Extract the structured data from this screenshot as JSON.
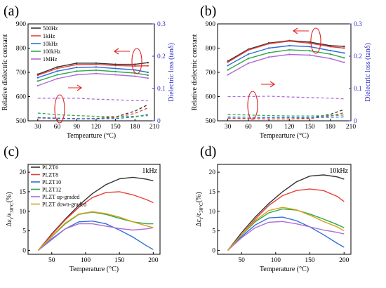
{
  "chart_data": [
    {
      "panel": "(a)",
      "type": "line",
      "xlabel": "Tempearture (°C)",
      "ylabel": "Relative dielectric constant",
      "ylabel_right": "Dielectric loss (tanδ)",
      "xlim": [
        15,
        210
      ],
      "ylim": [
        500,
        900
      ],
      "ylim_right": [
        0,
        0.3
      ],
      "xticks": [
        "30",
        "60",
        "90",
        "120",
        "150",
        "180",
        "210"
      ],
      "yticks": [
        "500",
        "600",
        "700",
        "800",
        "900"
      ],
      "yticks_right": [
        "0",
        "0.1",
        "0.2",
        "0.3"
      ],
      "legend": [
        "500Hz",
        "1kHz",
        "10kHz",
        "100kHz",
        "1MHz"
      ],
      "colors": [
        "#333333",
        "#e8403a",
        "#2f6fd6",
        "#2ea84a",
        "#b06bd8"
      ],
      "x": [
        30,
        60,
        90,
        120,
        150,
        180,
        200
      ],
      "series": [
        {
          "name": "500Hz",
          "values": [
            692,
            722,
            738,
            738,
            733,
            733,
            740
          ]
        },
        {
          "name": "1kHz",
          "values": [
            688,
            716,
            732,
            733,
            728,
            726,
            727
          ]
        },
        {
          "name": "10kHz",
          "values": [
            678,
            705,
            720,
            722,
            716,
            710,
            700
          ]
        },
        {
          "name": "100kHz",
          "values": [
            664,
            690,
            705,
            709,
            703,
            697,
            688
          ]
        },
        {
          "name": "1MHz",
          "values": [
            645,
            674,
            690,
            695,
            690,
            684,
            676
          ]
        }
      ],
      "loss_series": [
        {
          "name": "500Hz",
          "values": [
            0.01,
            0.008,
            0.006,
            0.007,
            0.012,
            0.03,
            0.05
          ]
        },
        {
          "name": "1kHz",
          "values": [
            0.009,
            0.007,
            0.006,
            0.006,
            0.01,
            0.023,
            0.04
          ]
        },
        {
          "name": "10kHz",
          "values": [
            0.01,
            0.008,
            0.007,
            0.006,
            0.007,
            0.012,
            0.02
          ]
        },
        {
          "name": "100kHz",
          "values": [
            0.024,
            0.019,
            0.016,
            0.014,
            0.013,
            0.014,
            0.016
          ]
        },
        {
          "name": "1MHz",
          "values": [
            0.07,
            0.07,
            0.07,
            0.067,
            0.065,
            0.063,
            0.062
          ]
        }
      ]
    },
    {
      "panel": "(b)",
      "type": "line",
      "xlabel": "Tempearture (°C)",
      "ylabel": "Relative dielectric constant",
      "ylabel_right": "Dielectric loss (tanδ)",
      "xlim": [
        15,
        210
      ],
      "ylim": [
        500,
        900
      ],
      "ylim_right": [
        0,
        0.3
      ],
      "xticks": [
        "30",
        "60",
        "90",
        "120",
        "150",
        "180",
        "210"
      ],
      "yticks": [
        "500",
        "600",
        "700",
        "800",
        "900"
      ],
      "yticks_right": [
        "0",
        "0.1",
        "0.2",
        "0.3"
      ],
      "colors": [
        "#333333",
        "#e8403a",
        "#2f6fd6",
        "#2ea84a",
        "#b06bd8"
      ],
      "x": [
        30,
        60,
        90,
        120,
        150,
        180,
        200
      ],
      "series": [
        {
          "name": "500Hz",
          "values": [
            746,
            795,
            821,
            831,
            825,
            810,
            807
          ]
        },
        {
          "name": "1kHz",
          "values": [
            742,
            792,
            818,
            829,
            820,
            806,
            800
          ]
        },
        {
          "name": "10kHz",
          "values": [
            728,
            775,
            800,
            810,
            806,
            790,
            780
          ]
        },
        {
          "name": "100kHz",
          "values": [
            710,
            757,
            781,
            793,
            789,
            775,
            760
          ]
        },
        {
          "name": "1MHz",
          "values": [
            690,
            737,
            763,
            774,
            771,
            757,
            741
          ]
        }
      ],
      "loss_series": [
        {
          "name": "500Hz",
          "values": [
            0.008,
            0.007,
            0.006,
            0.006,
            0.008,
            0.02,
            0.035
          ]
        },
        {
          "name": "1kHz",
          "values": [
            0.008,
            0.007,
            0.006,
            0.006,
            0.007,
            0.015,
            0.025
          ]
        },
        {
          "name": "10kHz",
          "values": [
            0.012,
            0.011,
            0.01,
            0.01,
            0.01,
            0.011,
            0.012
          ]
        },
        {
          "name": "100kHz",
          "values": [
            0.02,
            0.018,
            0.016,
            0.015,
            0.015,
            0.016,
            0.018
          ]
        },
        {
          "name": "1MHz",
          "values": [
            0.075,
            0.075,
            0.076,
            0.074,
            0.072,
            0.07,
            0.068
          ]
        }
      ]
    },
    {
      "panel": "(c)",
      "type": "line",
      "xlabel": "Temperature (°C)",
      "ylabel_main": "Δε",
      "ylabel_sub_r": "r",
      "ylabel_mid": "/ε",
      "ylabel_sub_30": "30°C",
      "ylabel_end": "(%)",
      "annotation": "1kHz",
      "xlim": [
        15,
        210
      ],
      "ylim": [
        -1,
        22
      ],
      "xticks": [
        "50",
        "100",
        "150",
        "200"
      ],
      "yticks": [
        "0",
        "5",
        "10",
        "15",
        "20"
      ],
      "legend": [
        "PLZT6",
        "PLZT8",
        "PLZT10",
        "PLZT12",
        "PLZT up-graded",
        "PLZT down-graded"
      ],
      "colors": [
        "#333333",
        "#e8403a",
        "#2f6fd6",
        "#2ea84a",
        "#b06bd8",
        "#d9a21b"
      ],
      "x": [
        30,
        50,
        70,
        90,
        110,
        130,
        150,
        170,
        190,
        200
      ],
      "series": [
        {
          "name": "PLZT6",
          "values": [
            0,
            4.2,
            8,
            11.5,
            14.5,
            16.8,
            18.3,
            18.7,
            18.2,
            17.8
          ]
        },
        {
          "name": "PLZT8",
          "values": [
            0,
            4,
            7.8,
            11,
            13.5,
            14.8,
            15,
            14.2,
            13,
            12.2
          ]
        },
        {
          "name": "PLZT10",
          "values": [
            0,
            2.8,
            5.5,
            7.3,
            7.5,
            6.8,
            5.2,
            3.4,
            1.2,
            0.2
          ]
        },
        {
          "name": "PLZT12",
          "values": [
            0,
            3.5,
            6.8,
            9.2,
            9.8,
            9.2,
            8.2,
            7.3,
            6.8,
            6.8
          ]
        },
        {
          "name": "PLZT up-graded",
          "values": [
            0,
            3,
            5.5,
            6.8,
            6.8,
            6.2,
            5.6,
            5.2,
            5.5,
            5.8
          ]
        },
        {
          "name": "PLZT down-graded",
          "values": [
            0,
            3.6,
            7,
            9.3,
            9.9,
            9.4,
            8.5,
            7.3,
            6.3,
            5.8
          ]
        }
      ]
    },
    {
      "panel": "(d)",
      "type": "line",
      "xlabel": "Temperature (°C)",
      "ylabel_main": "Δε",
      "ylabel_sub_r": "r",
      "ylabel_mid": "/ε",
      "ylabel_sub_30": "30°C",
      "ylabel_end": "(%)",
      "annotation": "10kHz",
      "xlim": [
        15,
        210
      ],
      "ylim": [
        -1,
        22
      ],
      "xticks": [
        "50",
        "100",
        "150",
        "200"
      ],
      "yticks": [
        "0",
        "5",
        "10",
        "15",
        "20"
      ],
      "colors": [
        "#333333",
        "#e8403a",
        "#2f6fd6",
        "#2ea84a",
        "#b06bd8",
        "#d9a21b"
      ],
      "x": [
        30,
        50,
        70,
        90,
        110,
        130,
        150,
        170,
        190,
        200
      ],
      "series": [
        {
          "name": "PLZT6",
          "values": [
            0,
            4.5,
            8.5,
            12,
            15,
            17.5,
            19,
            19.3,
            18.8,
            18.2
          ]
        },
        {
          "name": "PLZT8",
          "values": [
            0,
            4,
            8,
            11.5,
            14,
            15.3,
            15.7,
            15.3,
            13.8,
            12.5
          ]
        },
        {
          "name": "PLZT10",
          "values": [
            0,
            3.5,
            6.5,
            8.3,
            8.5,
            7.6,
            6,
            4,
            1.8,
            0.8
          ]
        },
        {
          "name": "PLZT12",
          "values": [
            0,
            3.9,
            7.3,
            9.6,
            10.6,
            10.3,
            9.3,
            8,
            6.6,
            5.8
          ]
        },
        {
          "name": "PLZT up-graded",
          "values": [
            0,
            3.2,
            5.8,
            7.2,
            7.4,
            6.8,
            6,
            5.2,
            4.6,
            4.2
          ]
        },
        {
          "name": "PLZT down-graded",
          "values": [
            0,
            4,
            7.6,
            10.2,
            11,
            10.4,
            9,
            7.4,
            6,
            5
          ]
        }
      ]
    }
  ]
}
